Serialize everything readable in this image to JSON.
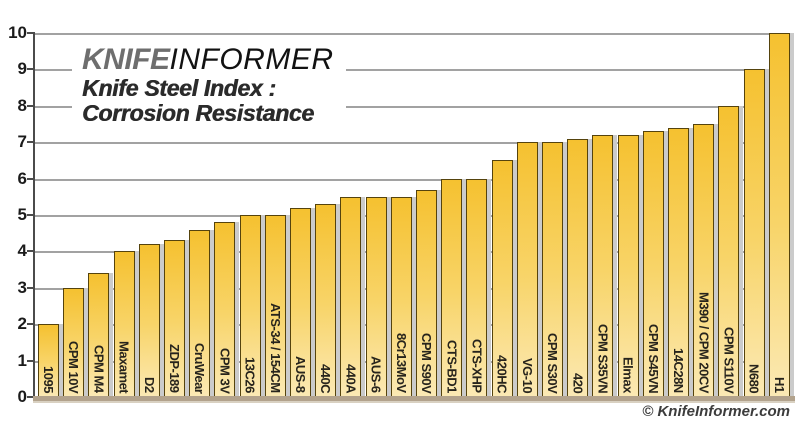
{
  "header": {
    "logo_knife": "KNIFE",
    "logo_informer": "INFORMER",
    "title_line1": "Knife Steel Index :",
    "title_line2": "Corrosion Resistance"
  },
  "footer": {
    "copyright": "© KnifeInformer.com"
  },
  "chart_data": {
    "type": "bar",
    "title": "Knife Steel Index : Corrosion Resistance",
    "xlabel": "",
    "ylabel": "",
    "ylim": [
      0,
      10
    ],
    "yticks": [
      0,
      1,
      2,
      3,
      4,
      5,
      6,
      7,
      8,
      9,
      10
    ],
    "grid": true,
    "legend": "none",
    "bar_color_top": "#f5c130",
    "bar_color_bottom": "#fbe9b4",
    "bar_border_color": "#55430d",
    "categories": [
      "1095",
      "CPM 10V",
      "CPM M4",
      "Maxamet",
      "D2",
      "ZDP-189",
      "CruWear",
      "CPM 3V",
      "13C26",
      "ATS-34 / 154CM",
      "AUS-8",
      "440C",
      "440A",
      "AUS-6",
      "8Cr13MoV",
      "CPM S90V",
      "CTS-BD1",
      "CTS-XHP",
      "420HC",
      "VG-10",
      "CPM S30V",
      "420",
      "CPM S35VN",
      "Elmax",
      "CPM S45VN",
      "14C28N",
      "M390 / CPM 20CV",
      "CPM S110V",
      "N680",
      "H1"
    ],
    "values": [
      2.0,
      3.0,
      3.4,
      4.0,
      4.2,
      4.3,
      4.6,
      4.8,
      5.0,
      5.0,
      5.2,
      5.3,
      5.5,
      5.5,
      5.5,
      5.7,
      6.0,
      6.0,
      6.5,
      7.0,
      7.0,
      7.1,
      7.2,
      7.2,
      7.3,
      7.4,
      7.5,
      8.0,
      9.0,
      10.0
    ]
  }
}
